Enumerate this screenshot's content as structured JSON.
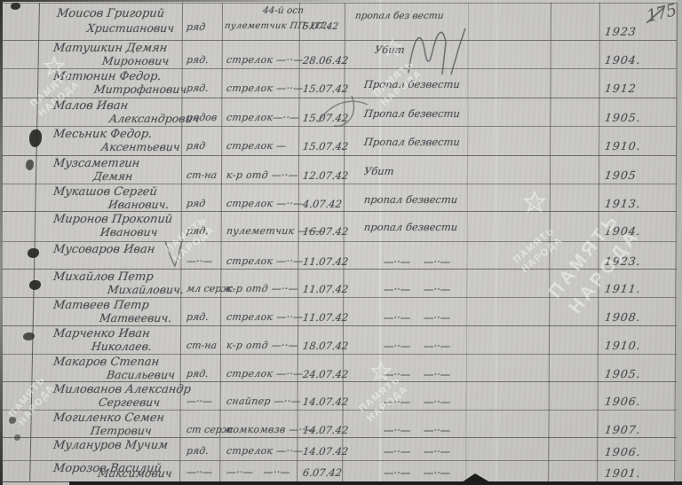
{
  "page": {
    "page_number": "175",
    "watermark_line1": "ПАМЯТЬ",
    "watermark_line2": "НАРОДА"
  },
  "table": {
    "rows": [
      {
        "name1": "Моисов Григорий",
        "name2": "Христианович",
        "rank": "ряд",
        "pos_top": "44-й осп",
        "position": "пулеметчик ПП-112.",
        "date": "5.07.42",
        "status": "пропал без вести",
        "year": "1923"
      },
      {
        "name1": "Матушкин Демян",
        "name2": "Миронович",
        "rank": "ряд.",
        "position": "стрелок —··—",
        "date": "28.06.42",
        "status": "Убит",
        "year": "1904."
      },
      {
        "name1": "Матюнин Федор.",
        "name2": "Митрофанович",
        "rank": "ряд.",
        "position": "стрелок —··—",
        "date": "15.07.42",
        "status": "Пропал безвести",
        "year": "1912"
      },
      {
        "name1": "Малов Иван",
        "name2": "Александрович",
        "rank": "рядов",
        "position": "стрелок—··—",
        "date": "15.07.42",
        "status": "Пропал безвести",
        "year": "1905."
      },
      {
        "name1": "Месьник Федор.",
        "name2": "Аксентьевич",
        "rank": "ряд",
        "position": "стрелок —",
        "date": "15.07.42",
        "status": "Пропал безвести",
        "year": "1910."
      },
      {
        "name1": "Музсаметгин",
        "name2": "Демян",
        "rank": "ст-на",
        "position": "к-р отд —··—",
        "date": "12.07.42",
        "status": "Убит",
        "year": "1905"
      },
      {
        "name1": "Мукашов Сергей",
        "name2": "Иванович.",
        "rank": "ряд",
        "position": "стрелок —··—",
        "date": "4.07.42",
        "status": "пропал безвести",
        "year": "1913."
      },
      {
        "name1": "Миронов Прокопий",
        "name2": "Иванович",
        "rank": "ряд.",
        "position": "пулеметчик —··—",
        "date": "16.07.42",
        "status": "пропал безвести",
        "year": "1904."
      },
      {
        "name1": "Мусоваров Иван",
        "name2": "",
        "rank": "—··—",
        "position": "стрелок —··—",
        "date": "11.07.42",
        "status": "—··—    —··—",
        "year": "1923."
      },
      {
        "name1": "Михайлов Петр",
        "name2": "Михайлович.",
        "rank": "мл серж.",
        "position": "к-р отд —··—",
        "date": "11.07.42",
        "status": "—··—    —··—",
        "year": "1911."
      },
      {
        "name1": "Матвеев Петр",
        "name2": "Матвеевич.",
        "rank": "ряд.",
        "position": "стрелок —··—",
        "date": "11.07.42",
        "status": "—··—    —··—",
        "year": "1908."
      },
      {
        "name1": "Марченко Иван",
        "name2": "Николаев.",
        "rank": "ст-на",
        "position": "к-р отд —··—",
        "date": "18.07.42",
        "status": "—··—    —··—",
        "year": "1910."
      },
      {
        "name1": "Макаров Степан",
        "name2": "Васильевич",
        "rank": "ряд.",
        "position": "стрелок —··—",
        "date": "24.07.42",
        "status": "—··—    —··—",
        "year": "1905."
      },
      {
        "name1": "Милованов Александр",
        "name2": "Сергеевич",
        "rank": "—··—",
        "position": "снайпер —··—",
        "date": "14.07.42",
        "status": "—··—    —··—",
        "year": "1906."
      },
      {
        "name1": "Могиленко Семен",
        "name2": "Петрович",
        "rank": "ст серж",
        "position": "помкомвзв —··—",
        "date": "14.07.42",
        "status": "—··—    —··—",
        "year": "1907."
      },
      {
        "name1": "Мулануров Мучим",
        "name2": "",
        "rank": "ряд.",
        "position": "стрелок —··—",
        "date": "14.07.42",
        "status": "—··—    —··—",
        "year": "1906."
      },
      {
        "name1": "Морозов Василий",
        "name2": "Максимович",
        "rank": "—··—",
        "position": "—··—   —··—",
        "date": "6.07.42",
        "status": "—··—    —··—",
        "year": "1901."
      }
    ]
  }
}
